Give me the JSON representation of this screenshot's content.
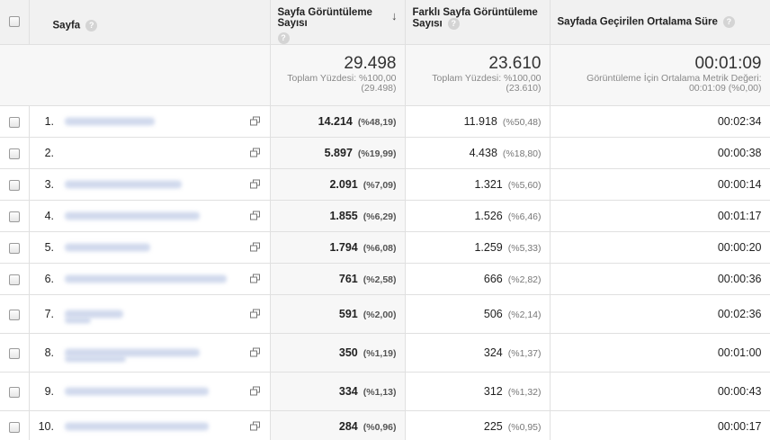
{
  "columns": {
    "page": "Sayfa",
    "pageviews": "Sayfa Görüntüleme Sayısı",
    "unique_pageviews": "Farklı Sayfa Görüntüleme Sayısı",
    "avg_time": "Sayfada Geçirilen Ortalama Süre",
    "help_glyph": "?",
    "sort_glyph": "↓"
  },
  "totals": {
    "pageviews": {
      "value": "29.498",
      "label": "Toplam Yüzdesi: %100,00",
      "sub": "(29.498)"
    },
    "unique_pageviews": {
      "value": "23.610",
      "label": "Toplam Yüzdesi: %100,00",
      "sub": "(23.610)"
    },
    "avg_time": {
      "value": "00:01:09",
      "label": "Görüntüleme İçin Ortalama Metrik Değeri:",
      "sub": "00:01:09 (%0,00)"
    }
  },
  "rows": [
    {
      "num": "1.",
      "pv": "14.214",
      "pv_pct": "(%48,19)",
      "upv": "11.918",
      "upv_pct": "(%50,48)",
      "time": "00:02:34"
    },
    {
      "num": "2.",
      "pv": "5.897",
      "pv_pct": "(%19,99)",
      "upv": "4.438",
      "upv_pct": "(%18,80)",
      "time": "00:00:38"
    },
    {
      "num": "3.",
      "pv": "2.091",
      "pv_pct": "(%7,09)",
      "upv": "1.321",
      "upv_pct": "(%5,60)",
      "time": "00:00:14"
    },
    {
      "num": "4.",
      "pv": "1.855",
      "pv_pct": "(%6,29)",
      "upv": "1.526",
      "upv_pct": "(%6,46)",
      "time": "00:01:17"
    },
    {
      "num": "5.",
      "pv": "1.794",
      "pv_pct": "(%6,08)",
      "upv": "1.259",
      "upv_pct": "(%5,33)",
      "time": "00:00:20"
    },
    {
      "num": "6.",
      "pv": "761",
      "pv_pct": "(%2,58)",
      "upv": "666",
      "upv_pct": "(%2,82)",
      "time": "00:00:36"
    },
    {
      "num": "7.",
      "pv": "591",
      "pv_pct": "(%2,00)",
      "upv": "506",
      "upv_pct": "(%2,14)",
      "time": "00:02:36"
    },
    {
      "num": "8.",
      "pv": "350",
      "pv_pct": "(%1,19)",
      "upv": "324",
      "upv_pct": "(%1,37)",
      "time": "00:01:00"
    },
    {
      "num": "9.",
      "pv": "334",
      "pv_pct": "(%1,13)",
      "upv": "312",
      "upv_pct": "(%1,32)",
      "time": "00:00:43"
    },
    {
      "num": "10.",
      "pv": "284",
      "pv_pct": "(%0,96)",
      "upv": "225",
      "upv_pct": "(%0,95)",
      "time": "00:00:17"
    }
  ]
}
